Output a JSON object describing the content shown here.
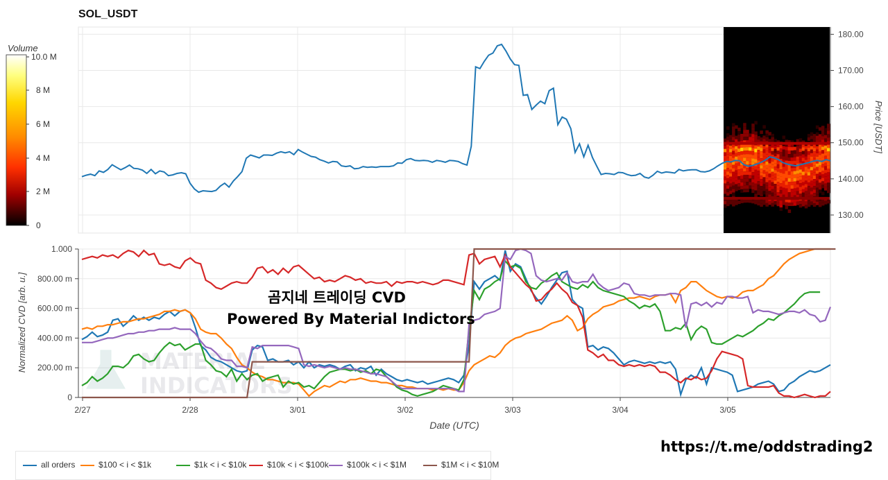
{
  "title": "SOL_USDT",
  "colorbar": {
    "title": "Volume",
    "ticks": [
      "10.0 M",
      "8 M",
      "6 M",
      "4 M",
      "2 M",
      "0"
    ]
  },
  "overlay": {
    "line1": "곰지네 트레이딩 CVD",
    "line2": "Powered By Material Indictors"
  },
  "watermark": [
    "MATERIAL",
    "INDICATORS"
  ],
  "telegram_url": "https://t.me/oddstrading2",
  "chart_data": [
    {
      "type": "line",
      "title": "SOL_USDT",
      "ylabel": "Price [USDT]",
      "y_ticks": [
        "130.00",
        "140.00",
        "150.00",
        "160.00",
        "170.00",
        "180.00"
      ],
      "ylim": [
        125,
        182
      ],
      "x_ticks": [
        "2/27",
        "2/28",
        "3/01",
        "3/02",
        "3/03",
        "3/04",
        "3/05"
      ],
      "heatmap": "Volume-at-price heatmap over the last segment",
      "series": [
        {
          "name": "",
          "color": "#1f77b4",
          "values": [
            140.6,
            141.0,
            141.3,
            140.9,
            142.2,
            141.8,
            142.6,
            143.9,
            143.2,
            142.5,
            143.1,
            143.8,
            142.9,
            142.8,
            142.4,
            141.5,
            142.6,
            141.4,
            142.2,
            141.9,
            140.9,
            141.1,
            141.5,
            141.7,
            141.4,
            138.8,
            137.2,
            136.3,
            136.7,
            136.6,
            136.5,
            136.8,
            138.0,
            138.8,
            137.7,
            139.4,
            140.6,
            142.0,
            145.7,
            146.6,
            146.2,
            145.8,
            146.6,
            146.6,
            146.5,
            147.1,
            147.5,
            147.2,
            147.5,
            146.7,
            148.1,
            147.4,
            146.8,
            146.2,
            146.0,
            145.3,
            144.9,
            144.4,
            144.8,
            144.7,
            143.6,
            143.4,
            143.6,
            142.8,
            142.9,
            143.4,
            143.2,
            143.3,
            143.2,
            143.4,
            143.4,
            143.4,
            143.6,
            144.4,
            144.3,
            145.3,
            145.6,
            145.1,
            145.0,
            145.1,
            145.0,
            144.6,
            145.1,
            144.9,
            144.6,
            145.1,
            145.0,
            144.8,
            144.2,
            143.8,
            149.0,
            171.0,
            170.5,
            172.5,
            174.2,
            174.8,
            176.8,
            177.2,
            175.4,
            173.2,
            171.6,
            171.4,
            163.1,
            163.3,
            159.2,
            160.4,
            161.5,
            160.8,
            164.4,
            165.1,
            155.0,
            157.1,
            156.5,
            153.9,
            147.3,
            149.7,
            146.1,
            149.3,
            145.9,
            143.5,
            141.2,
            141.5,
            141.4,
            141.2,
            141.8,
            141.7,
            141.2,
            140.9,
            141.0,
            141.5,
            140.5,
            140.2,
            141.0,
            142.1,
            141.6,
            141.9,
            141.8,
            141.6,
            142.6,
            142.2,
            142.4,
            142.5,
            142.5,
            142.0,
            141.9,
            142.2,
            142.8,
            143.6,
            144.3,
            144.8,
            144.7,
            145.1,
            145.0,
            143.9,
            143.5,
            143.7,
            144.1,
            144.6,
            145.2,
            146.1,
            145.8,
            145.3,
            144.5,
            144.1,
            143.8,
            143.6,
            143.9,
            144.2,
            144.5,
            144.9,
            145.1,
            144.8,
            145.3,
            145.0
          ]
        }
      ]
    },
    {
      "type": "line",
      "ylabel": "Normalized CVD [arb. u.]",
      "xlabel": "Date (UTC)",
      "y_ticks": [
        "0",
        "200.00 m",
        "400.00 m",
        "600.00 m",
        "800.00 m",
        "1.000"
      ],
      "ylim": [
        0,
        1
      ],
      "x_ticks": [
        "2/27",
        "2/28",
        "3/01",
        "3/02",
        "3/03",
        "3/04",
        "3/05"
      ],
      "series": [
        {
          "name": "all orders",
          "color": "#1f77b4",
          "values": [
            0.39,
            0.41,
            0.44,
            0.41,
            0.42,
            0.44,
            0.52,
            0.53,
            0.48,
            0.51,
            0.55,
            0.52,
            0.54,
            0.52,
            0.54,
            0.53,
            0.56,
            0.58,
            0.55,
            0.58,
            0.59,
            0.57,
            0.47,
            0.35,
            0.32,
            0.27,
            0.25,
            0.24,
            0.22,
            0.2,
            0.18,
            0.17,
            0.18,
            0.32,
            0.35,
            0.34,
            0.25,
            0.26,
            0.24,
            0.24,
            0.25,
            0.22,
            0.24,
            0.2,
            0.24,
            0.2,
            0.22,
            0.21,
            0.22,
            0.21,
            0.19,
            0.21,
            0.22,
            0.18,
            0.2,
            0.19,
            0.21,
            0.15,
            0.19,
            0.16,
            0.14,
            0.12,
            0.11,
            0.12,
            0.11,
            0.1,
            0.11,
            0.09,
            0.1,
            0.11,
            0.12,
            0.13,
            0.12,
            0.1,
            0.15,
            0.35,
            0.78,
            0.73,
            0.78,
            0.8,
            0.82,
            0.79,
            0.99,
            0.85,
            0.9,
            0.88,
            0.8,
            0.72,
            0.67,
            0.63,
            0.68,
            0.74,
            0.79,
            0.84,
            0.85,
            0.66,
            0.62,
            0.6,
            0.34,
            0.35,
            0.32,
            0.34,
            0.33,
            0.3,
            0.26,
            0.22,
            0.24,
            0.25,
            0.24,
            0.23,
            0.24,
            0.23,
            0.24,
            0.23,
            0.24,
            0.19,
            0.02,
            0.12,
            0.15,
            0.13,
            0.2,
            0.09,
            0.2,
            0.19,
            0.18,
            0.17,
            0.15,
            0.04,
            0.05,
            0.06,
            0.07,
            0.09,
            0.1,
            0.11,
            0.09,
            0.04,
            0.05,
            0.09,
            0.11,
            0.14,
            0.16,
            0.18,
            0.17,
            0.18,
            0.2,
            0.22
          ]
        },
        {
          "name": "$100 < i < $1k",
          "color": "#ff7f0e",
          "values": [
            0.46,
            0.47,
            0.46,
            0.48,
            0.48,
            0.49,
            0.49,
            0.5,
            0.51,
            0.51,
            0.52,
            0.53,
            0.53,
            0.54,
            0.55,
            0.56,
            0.58,
            0.58,
            0.59,
            0.58,
            0.59,
            0.57,
            0.53,
            0.46,
            0.44,
            0.43,
            0.43,
            0.4,
            0.36,
            0.33,
            0.27,
            0.22,
            0.2,
            0.17,
            0.15,
            0.14,
            0.12,
            0.12,
            0.11,
            0.1,
            0.1,
            0.1,
            0.09,
            0.05,
            0.01,
            0.04,
            0.06,
            0.08,
            0.07,
            0.09,
            0.11,
            0.1,
            0.12,
            0.12,
            0.13,
            0.12,
            0.11,
            0.11,
            0.1,
            0.1,
            0.09,
            0.08,
            0.08,
            0.07,
            0.07,
            0.06,
            0.06,
            0.06,
            0.05,
            0.06,
            0.05,
            0.06,
            0.05,
            0.05,
            0.1,
            0.18,
            0.22,
            0.24,
            0.26,
            0.28,
            0.27,
            0.3,
            0.35,
            0.38,
            0.4,
            0.41,
            0.43,
            0.44,
            0.45,
            0.46,
            0.48,
            0.5,
            0.51,
            0.52,
            0.55,
            0.52,
            0.45,
            0.47,
            0.53,
            0.56,
            0.58,
            0.61,
            0.62,
            0.63,
            0.65,
            0.66,
            0.67,
            0.67,
            0.68,
            0.67,
            0.66,
            0.68,
            0.69,
            0.69,
            0.7,
            0.64,
            0.72,
            0.74,
            0.78,
            0.78,
            0.75,
            0.72,
            0.7,
            0.68,
            0.67,
            0.68,
            0.67,
            0.68,
            0.71,
            0.72,
            0.72,
            0.74,
            0.76,
            0.8,
            0.82,
            0.86,
            0.9,
            0.93,
            0.95,
            0.97,
            0.98,
            0.99,
            1.0,
            1.0,
            1.0,
            1.0
          ]
        },
        {
          "name": "$1k < i < $10k",
          "color": "#2ca02c",
          "values": [
            0.08,
            0.1,
            0.14,
            0.11,
            0.13,
            0.16,
            0.21,
            0.21,
            0.2,
            0.23,
            0.28,
            0.29,
            0.26,
            0.24,
            0.25,
            0.3,
            0.34,
            0.37,
            0.35,
            0.36,
            0.32,
            0.34,
            0.36,
            0.36,
            0.25,
            0.22,
            0.18,
            0.17,
            0.14,
            0.19,
            0.11,
            0.16,
            0.12,
            0.15,
            0.16,
            0.11,
            0.13,
            0.14,
            0.15,
            0.07,
            0.11,
            0.09,
            0.1,
            0.07,
            0.08,
            0.06,
            0.1,
            0.14,
            0.17,
            0.18,
            0.19,
            0.19,
            0.18,
            0.19,
            0.17,
            0.18,
            0.16,
            0.19,
            0.18,
            0.14,
            0.11,
            0.07,
            0.05,
            0.04,
            0.02,
            0.01,
            0.02,
            0.03,
            0.04,
            0.06,
            0.08,
            0.07,
            0.06,
            0.05,
            0.12,
            0.46,
            0.72,
            0.66,
            0.73,
            0.75,
            0.78,
            0.8,
            0.92,
            0.88,
            0.89,
            0.87,
            0.78,
            0.74,
            0.73,
            0.77,
            0.79,
            0.82,
            0.84,
            0.78,
            0.76,
            0.74,
            0.73,
            0.76,
            0.74,
            0.78,
            0.74,
            0.72,
            0.71,
            0.7,
            0.69,
            0.68,
            0.65,
            0.63,
            0.6,
            0.62,
            0.61,
            0.63,
            0.58,
            0.45,
            0.45,
            0.47,
            0.46,
            0.5,
            0.39,
            0.45,
            0.48,
            0.46,
            0.37,
            0.36,
            0.36,
            0.38,
            0.4,
            0.42,
            0.41,
            0.43,
            0.45,
            0.48,
            0.5,
            0.53,
            0.52,
            0.55,
            0.57,
            0.6,
            0.63,
            0.67,
            0.7,
            0.71,
            0.71,
            0.71
          ]
        },
        {
          "name": "$10k < i < $100k",
          "color": "#d62728",
          "values": [
            0.93,
            0.94,
            0.95,
            0.94,
            0.96,
            0.95,
            0.96,
            0.94,
            0.97,
            0.99,
            0.98,
            0.95,
            0.99,
            0.96,
            0.97,
            0.9,
            0.89,
            0.9,
            0.88,
            0.87,
            0.92,
            0.94,
            0.91,
            0.9,
            0.79,
            0.77,
            0.74,
            0.73,
            0.75,
            0.77,
            0.78,
            0.77,
            0.77,
            0.81,
            0.87,
            0.88,
            0.84,
            0.86,
            0.83,
            0.87,
            0.84,
            0.88,
            0.89,
            0.86,
            0.83,
            0.8,
            0.81,
            0.78,
            0.79,
            0.78,
            0.8,
            0.82,
            0.81,
            0.79,
            0.8,
            0.77,
            0.78,
            0.77,
            0.77,
            0.78,
            0.75,
            0.78,
            0.77,
            0.78,
            0.78,
            0.77,
            0.78,
            0.77,
            0.76,
            0.77,
            0.79,
            0.79,
            0.78,
            0.77,
            0.76,
            0.96,
            0.97,
            0.9,
            0.93,
            0.94,
            0.95,
            0.88,
            0.96,
            0.88,
            0.84,
            0.8,
            0.76,
            0.73,
            0.65,
            0.66,
            0.7,
            0.73,
            0.77,
            0.73,
            0.7,
            0.64,
            0.62,
            0.54,
            0.32,
            0.3,
            0.27,
            0.29,
            0.25,
            0.25,
            0.22,
            0.21,
            0.22,
            0.21,
            0.22,
            0.21,
            0.22,
            0.21,
            0.17,
            0.17,
            0.15,
            0.12,
            0.1,
            0.13,
            0.12,
            0.14,
            0.12,
            0.13,
            0.18,
            0.26,
            0.31,
            0.3,
            0.29,
            0.28,
            0.26,
            0.08,
            0.07,
            0.07,
            0.07,
            0.07,
            0.08,
            0.03,
            0.01,
            0.01,
            0.0,
            0.01,
            0.02,
            0.01,
            0.0,
            0.01,
            0.01,
            0.04
          ]
        },
        {
          "name": "$100k < i < $1M",
          "color": "#9467bd",
          "values": [
            0.37,
            0.37,
            0.37,
            0.38,
            0.39,
            0.4,
            0.4,
            0.41,
            0.42,
            0.43,
            0.43,
            0.44,
            0.44,
            0.45,
            0.45,
            0.46,
            0.46,
            0.46,
            0.47,
            0.46,
            0.46,
            0.46,
            0.43,
            0.38,
            0.34,
            0.33,
            0.3,
            0.26,
            0.25,
            0.25,
            0.21,
            0.21,
            0.2,
            0.34,
            0.33,
            0.35,
            0.35,
            0.35,
            0.35,
            0.35,
            0.35,
            0.34,
            0.33,
            0.22,
            0.21,
            0.22,
            0.21,
            0.2,
            0.21,
            0.2,
            0.19,
            0.2,
            0.19,
            0.19,
            0.18,
            0.17,
            0.16,
            0.16,
            0.15,
            0.14,
            0.11,
            0.08,
            0.06,
            0.06,
            0.06,
            0.06,
            0.06,
            0.06,
            0.06,
            0.06,
            0.06,
            0.06,
            0.06,
            0.04,
            0.04,
            0.49,
            0.52,
            0.53,
            0.56,
            0.57,
            0.58,
            0.6,
            0.95,
            0.93,
            0.99,
            1.0,
            0.99,
            0.97,
            0.82,
            0.79,
            0.78,
            0.79,
            0.8,
            0.79,
            0.84,
            0.78,
            0.77,
            0.78,
            0.78,
            0.83,
            0.77,
            0.74,
            0.72,
            0.73,
            0.74,
            0.77,
            0.76,
            0.7,
            0.69,
            0.69,
            0.68,
            0.69,
            0.69,
            0.69,
            0.7,
            0.7,
            0.69,
            0.47,
            0.63,
            0.64,
            0.62,
            0.64,
            0.61,
            0.64,
            0.63,
            0.68,
            0.68,
            0.67,
            0.67,
            0.68,
            0.57,
            0.59,
            0.58,
            0.58,
            0.57,
            0.56,
            0.57,
            0.58,
            0.58,
            0.57,
            0.59,
            0.56,
            0.55,
            0.51,
            0.52,
            0.61
          ]
        },
        {
          "name": "$1M < i < $10M",
          "color": "#8c564b",
          "steps": [
            [
              0,
              0
            ],
            [
              32,
              0
            ],
            [
              33,
              0.24
            ],
            [
              75,
              0.24
            ],
            [
              76,
              1.0
            ],
            [
              146,
              1.0
            ]
          ]
        }
      ]
    }
  ]
}
